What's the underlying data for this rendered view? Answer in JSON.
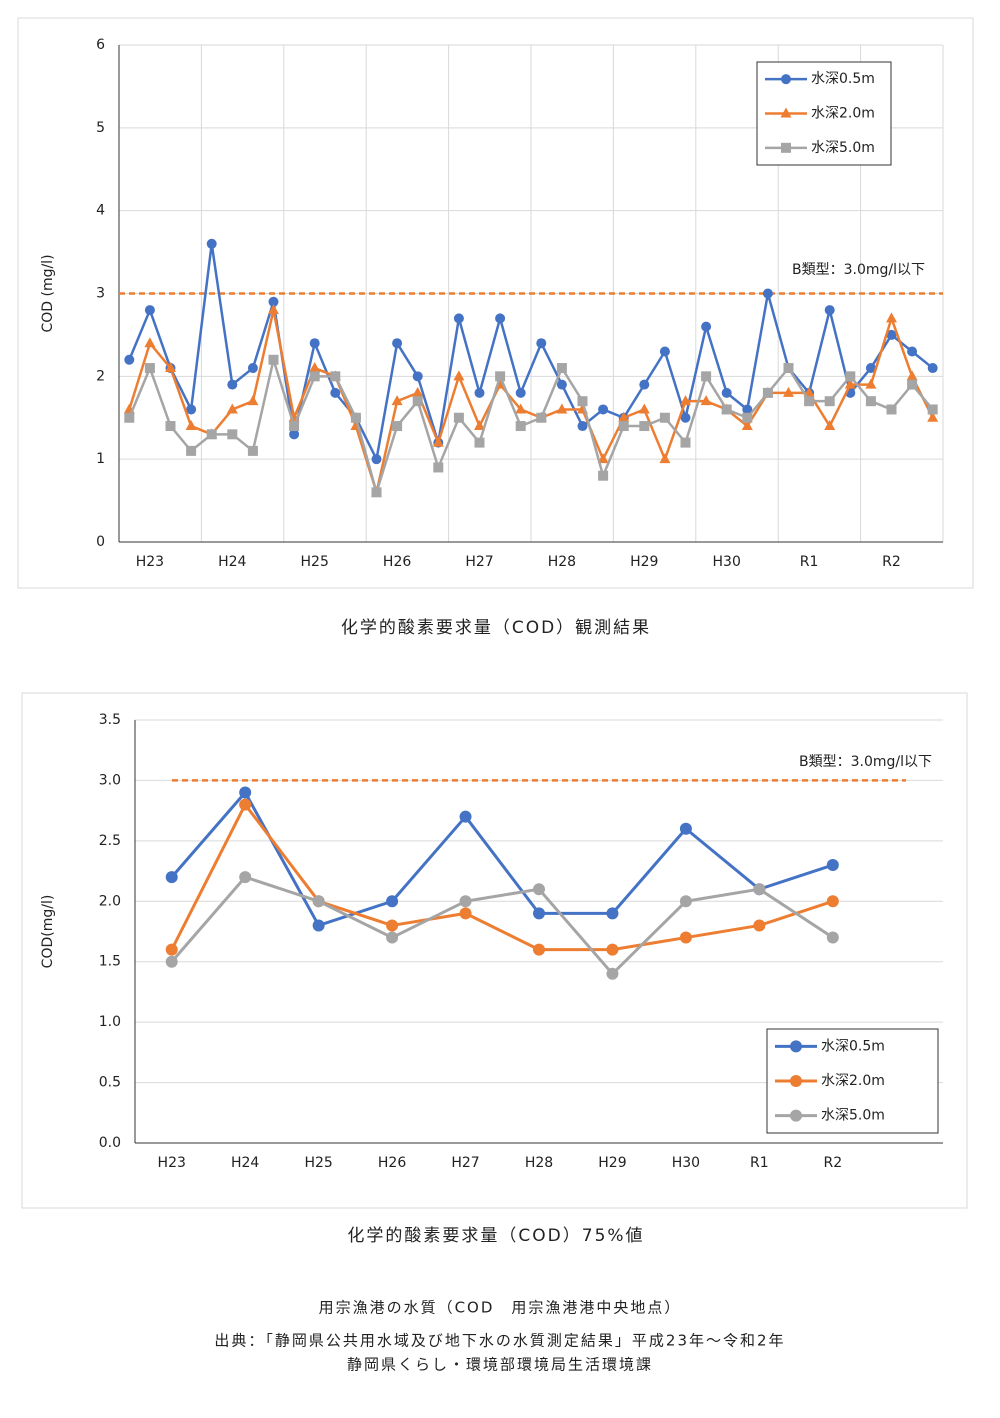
{
  "chart_data": [
    {
      "type": "line",
      "y_label": "COD (mg/l)",
      "categories": [
        null,
        "H23",
        null,
        null,
        null,
        "H24",
        null,
        null,
        null,
        "H25",
        null,
        null,
        null,
        "H26",
        null,
        null,
        null,
        "H27",
        null,
        null,
        null,
        "H28",
        null,
        null,
        null,
        "H29",
        null,
        null,
        null,
        "H30",
        null,
        null,
        null,
        "R1",
        null,
        null,
        null,
        "R2",
        null,
        null
      ],
      "series": [
        {
          "name": "水深0.5m",
          "color": "#4472c4",
          "marker": "circle",
          "values": [
            2.2,
            2.8,
            2.1,
            1.6,
            3.6,
            1.9,
            2.1,
            2.9,
            1.3,
            2.4,
            1.8,
            1.5,
            1.0,
            2.4,
            2.0,
            1.2,
            2.7,
            1.8,
            2.7,
            1.8,
            2.4,
            1.9,
            1.4,
            1.6,
            1.5,
            1.9,
            2.3,
            1.5,
            2.6,
            1.8,
            1.6,
            3.0,
            2.1,
            1.8,
            2.8,
            1.8,
            2.1,
            2.5,
            2.3,
            2.1
          ]
        },
        {
          "name": "水深2.0m",
          "color": "#ed7d31",
          "marker": "triangle",
          "values": [
            1.6,
            2.4,
            2.1,
            1.4,
            1.3,
            1.6,
            1.7,
            2.8,
            1.5,
            2.1,
            2.0,
            1.4,
            0.6,
            1.7,
            1.8,
            1.2,
            2.0,
            1.4,
            1.9,
            1.6,
            1.5,
            1.6,
            1.6,
            1.0,
            1.5,
            1.6,
            1.0,
            1.7,
            1.7,
            1.6,
            1.4,
            1.8,
            1.8,
            1.8,
            1.4,
            1.9,
            1.9,
            2.7,
            2.0,
            1.5
          ]
        },
        {
          "name": "水深5.0m",
          "color": "#a5a5a5",
          "marker": "square",
          "values": [
            1.5,
            2.1,
            1.4,
            1.1,
            1.3,
            1.3,
            1.1,
            2.2,
            1.4,
            2.0,
            2.0,
            1.5,
            0.6,
            1.4,
            1.7,
            0.9,
            1.5,
            1.2,
            2.0,
            1.4,
            1.5,
            2.1,
            1.7,
            0.8,
            1.4,
            1.4,
            1.5,
            1.2,
            2.0,
            1.6,
            1.5,
            1.8,
            2.1,
            1.7,
            1.7,
            2.0,
            1.7,
            1.6,
            1.9,
            1.6
          ]
        }
      ],
      "ylim": [
        0,
        6
      ],
      "yticks": [
        0,
        1,
        2,
        3,
        4,
        5,
        6
      ],
      "grid": true,
      "legend": "upper right",
      "reference": {
        "value": 3.0,
        "label": "B類型：3.0mg/l以下",
        "color": "#ed7d31"
      },
      "caption": "化学的酸素要求量（COD）観測結果"
    },
    {
      "type": "line",
      "y_label": "COD(mg/l)",
      "categories": [
        "H23",
        "H24",
        "H25",
        "H26",
        "H27",
        "H28",
        "H29",
        "H30",
        "R1",
        "R2",
        null
      ],
      "series": [
        {
          "name": "水深0.5m",
          "color": "#4472c4",
          "marker": "circle",
          "values": [
            2.2,
            2.9,
            1.8,
            2.0,
            2.7,
            1.9,
            1.9,
            2.6,
            2.1,
            2.3,
            null
          ]
        },
        {
          "name": "水深2.0m",
          "color": "#ed7d31",
          "marker": "circle",
          "values": [
            1.6,
            2.8,
            2.0,
            1.8,
            1.9,
            1.6,
            1.6,
            1.7,
            1.8,
            2.0,
            null
          ]
        },
        {
          "name": "水深5.0m",
          "color": "#a5a5a5",
          "marker": "circle",
          "values": [
            1.5,
            2.2,
            2.0,
            1.7,
            2.0,
            2.1,
            1.4,
            2.0,
            2.1,
            1.7,
            null
          ]
        }
      ],
      "ylim": [
        0,
        3.5
      ],
      "yticks": [
        {
          "value": 0,
          "label": "0.0"
        },
        {
          "value": 0.5,
          "label": "0.5"
        },
        {
          "value": 1,
          "label": "1.0"
        },
        {
          "value": 1.5,
          "label": "1.5"
        },
        {
          "value": 2,
          "label": "2.0"
        },
        {
          "value": 2.5,
          "label": "2.5"
        },
        {
          "value": 3,
          "label": "3.0"
        },
        {
          "value": 3.5,
          "label": "3.5"
        }
      ],
      "grid": true,
      "legend": "lower right",
      "reference": {
        "value": 3.0,
        "label": "B類型：3.0mg/l以下",
        "color": "#ed7d31"
      },
      "caption": "化学的酸素要求量（COD）75%値"
    }
  ],
  "footer": {
    "title": "用宗漁港の水質（COD　用宗漁港港中央地点）",
    "source": "出典：「静岡県公共用水域及び地下水の水質測定結果」平成23年～令和2年",
    "agency": "静岡県くらし・環境部環境局生活環境課"
  }
}
